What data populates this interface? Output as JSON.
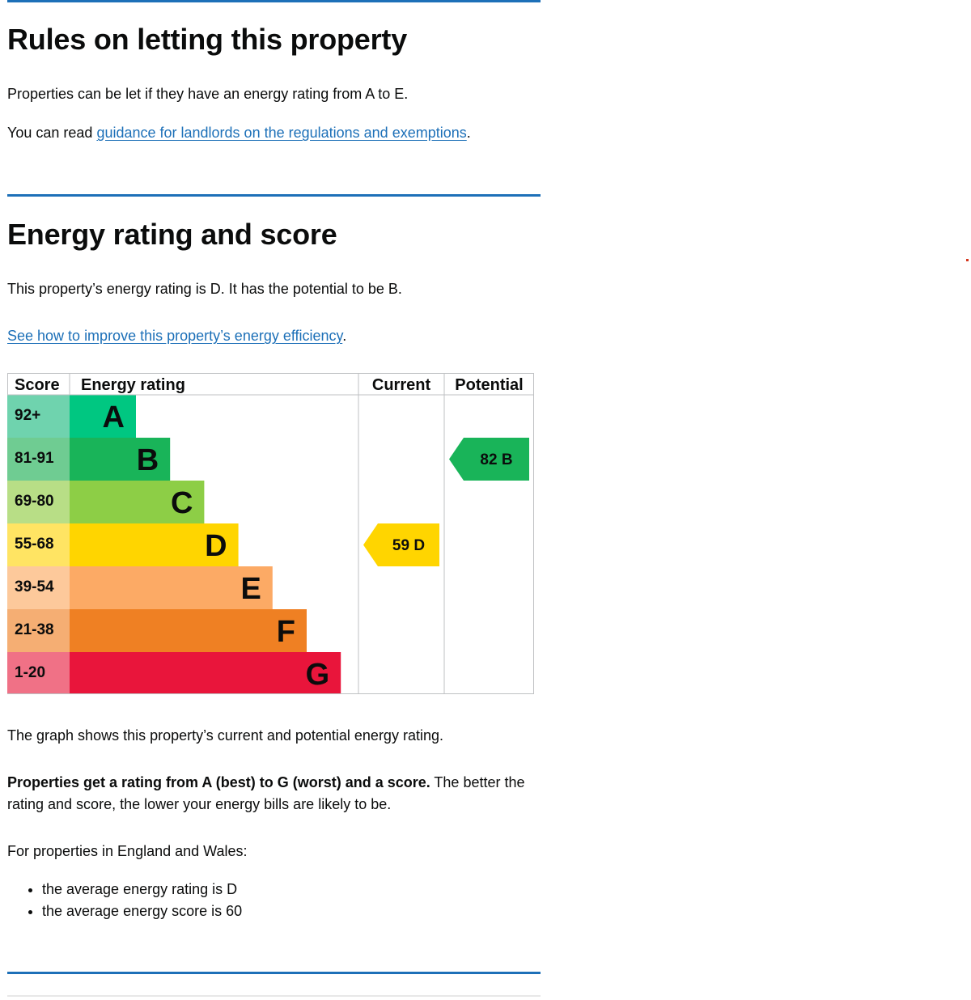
{
  "rules": {
    "title": "Rules on letting this property",
    "para1": "Properties can be let if they have an energy rating from A to E.",
    "para2_prefix": "You can read ",
    "para2_link": "guidance for landlords on the regulations and exemptions",
    "para2_suffix": "."
  },
  "energy": {
    "title": "Energy rating and score",
    "summary": "This property’s energy rating is D. It has the potential to be B.",
    "improve_link": "See how to improve this property’s energy efficiency",
    "improve_suffix": ".",
    "graph_caption": "The graph shows this property’s current and potential energy rating.",
    "rating_bold": "Properties get a rating from A (best) to G (worst) and a score.",
    "rating_rest": " The better the rating and score, the lower your energy bills are likely to be.",
    "regional_intro": "For properties in England and Wales:",
    "bullets": [
      "the average energy rating is D",
      "the average energy score is 60"
    ]
  },
  "chart_data": {
    "type": "table",
    "headers": {
      "score": "Score",
      "rating": "Energy rating",
      "current": "Current",
      "potential": "Potential"
    },
    "bands": [
      {
        "score": "92+",
        "letter": "A",
        "bar_color": "#00c781",
        "score_color": "#6fd3ae"
      },
      {
        "score": "81-91",
        "letter": "B",
        "bar_color": "#19b459",
        "score_color": "#6fcc92"
      },
      {
        "score": "69-80",
        "letter": "C",
        "bar_color": "#8dce46",
        "score_color": "#b8de86"
      },
      {
        "score": "55-68",
        "letter": "D",
        "bar_color": "#ffd500",
        "score_color": "#ffe463"
      },
      {
        "score": "39-54",
        "letter": "E",
        "bar_color": "#fcaa65",
        "score_color": "#fdc99b"
      },
      {
        "score": "21-38",
        "letter": "F",
        "bar_color": "#ef8023",
        "score_color": "#f5ae73"
      },
      {
        "score": "1-20",
        "letter": "G",
        "bar_color": "#e9153b",
        "score_color": "#f07186"
      }
    ],
    "current": {
      "score": 59,
      "letter": "D",
      "label": "59  D",
      "color": "#ffd500"
    },
    "potential": {
      "score": 82,
      "letter": "B",
      "label": "82  B",
      "color": "#19b459"
    }
  }
}
